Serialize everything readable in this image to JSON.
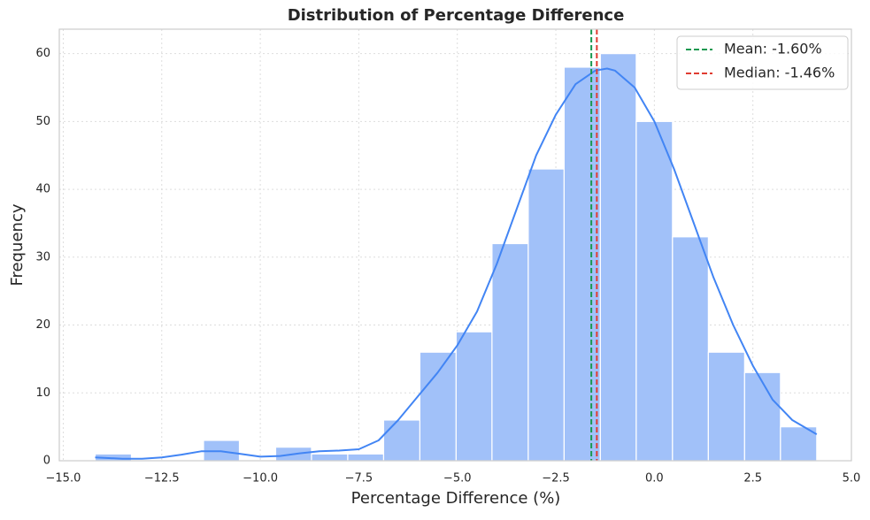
{
  "chart_data": {
    "type": "histogram",
    "title": "Distribution of Percentage Difference",
    "xlabel": "Percentage Difference (%)",
    "ylabel": "Frequency",
    "bins": [
      -14.19,
      -13.27,
      -12.36,
      -11.44,
      -10.53,
      -9.61,
      -8.7,
      -7.78,
      -6.87,
      -5.95,
      -5.03,
      -4.12,
      -3.2,
      -2.29,
      -1.37,
      -0.46,
      0.46,
      1.37,
      2.29,
      3.2,
      4.12
    ],
    "values": [
      1,
      0,
      0,
      3,
      0,
      2,
      1,
      1,
      6,
      16,
      19,
      32,
      43,
      58,
      60,
      50,
      33,
      16,
      13,
      5
    ],
    "color": "#a1c1f9",
    "kde": {
      "color": "#4285f4",
      "x": [
        -14.19,
        -13.5,
        -13,
        -12.5,
        -12,
        -11.5,
        -11,
        -10.5,
        -10,
        -9.5,
        -9,
        -8.5,
        -8,
        -7.5,
        -7,
        -6.5,
        -6,
        -5.5,
        -5,
        -4.5,
        -4,
        -3.5,
        -3,
        -2.5,
        -2,
        -1.5,
        -1.2,
        -1,
        -0.5,
        0,
        0.5,
        1,
        1.5,
        2,
        2.5,
        3,
        3.5,
        4.12
      ],
      "values": [
        0.5,
        0.3,
        0.3,
        0.5,
        0.9,
        1.4,
        1.4,
        1.0,
        0.6,
        0.7,
        1.1,
        1.4,
        1.5,
        1.7,
        3.0,
        6.0,
        9.5,
        13,
        17,
        22,
        29,
        37,
        45,
        51,
        55.5,
        57.5,
        57.8,
        57.5,
        55,
        50,
        43,
        35,
        27,
        20,
        14,
        9,
        6,
        3.9
      ]
    },
    "lines": [
      {
        "name": "Mean: -1.60%",
        "value": -1.6,
        "color": "#1a9850"
      },
      {
        "name": "Median: -1.46%",
        "value": -1.46,
        "color": "#e03c31"
      }
    ],
    "xlim": [
      -15.1,
      5.0
    ],
    "ylim": [
      0,
      63.6
    ],
    "xticks": [
      {
        "value": -15,
        "label": "−15.0"
      },
      {
        "value": -12.5,
        "label": "−12.5"
      },
      {
        "value": -10,
        "label": "−10.0"
      },
      {
        "value": -7.5,
        "label": "−7.5"
      },
      {
        "value": -5,
        "label": "−5.0"
      },
      {
        "value": -2.5,
        "label": "−2.5"
      },
      {
        "value": 0,
        "label": "0.0"
      },
      2.5,
      {
        "value": 5,
        "label": "5.0"
      }
    ],
    "yticks": [
      0,
      10,
      20,
      30,
      40,
      50,
      60
    ],
    "grid": true,
    "legend": "upper right"
  }
}
